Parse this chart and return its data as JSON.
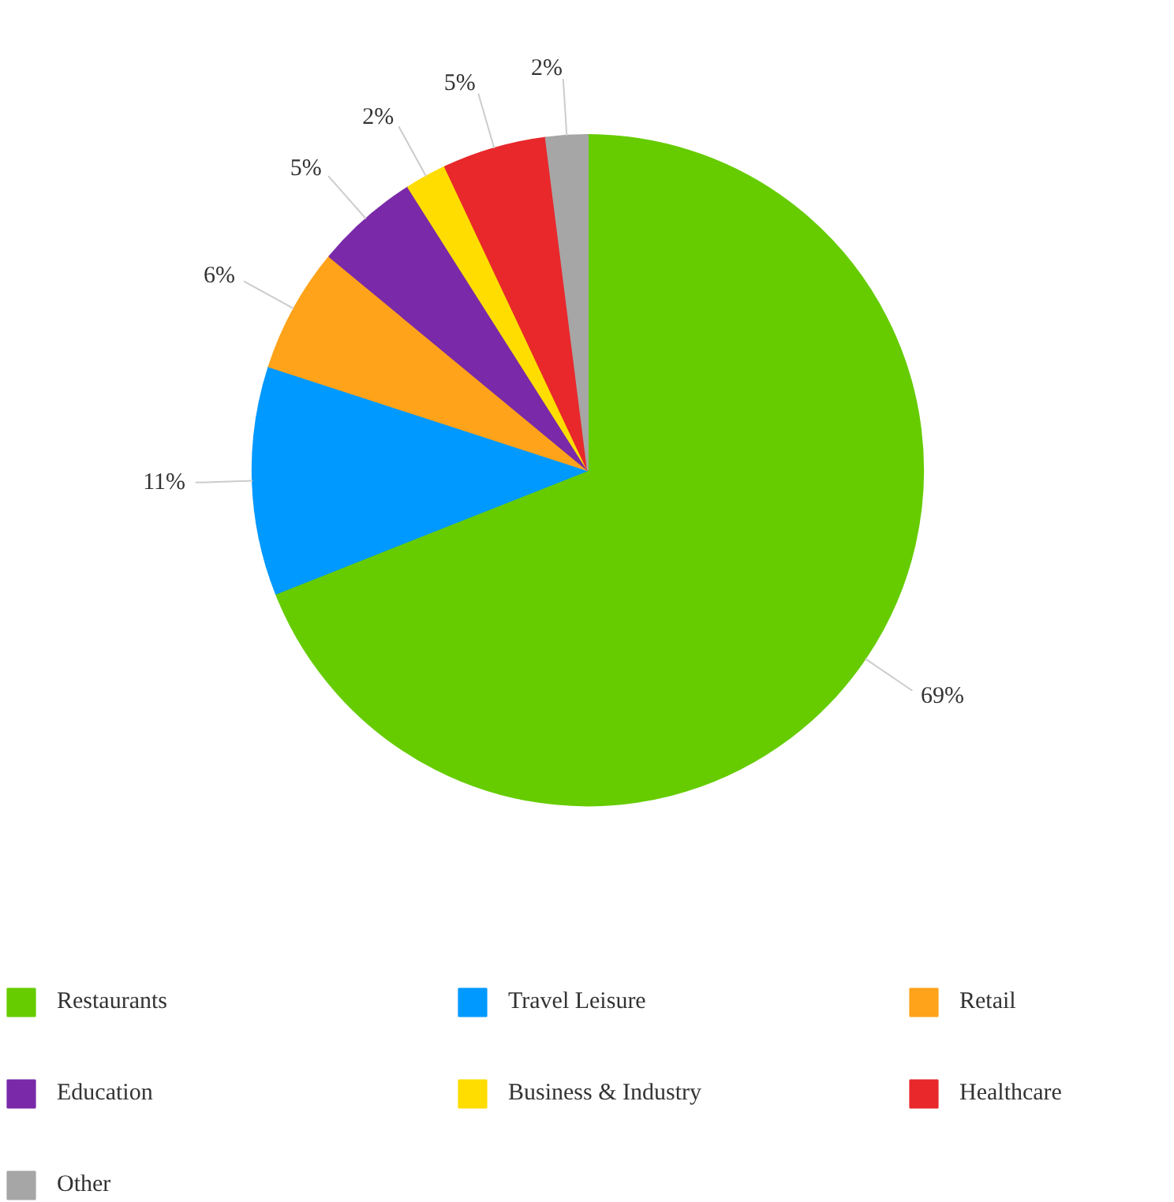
{
  "chart_data": {
    "type": "pie",
    "categories": [
      "Restaurants",
      "Travel Leisure",
      "Retail",
      "Education",
      "Business & Industry",
      "Healthcare",
      "Other"
    ],
    "values": [
      69,
      11,
      6,
      5,
      2,
      5,
      2
    ],
    "value_labels": [
      "69%",
      "11%",
      "6%",
      "5%",
      "2%",
      "5%",
      "2%"
    ],
    "colors": [
      "#66cc00",
      "#0099ff",
      "#ffa31a",
      "#7a2aa8",
      "#ffdd00",
      "#e8282b",
      "#a6a6a6"
    ],
    "legend": "bottom"
  }
}
